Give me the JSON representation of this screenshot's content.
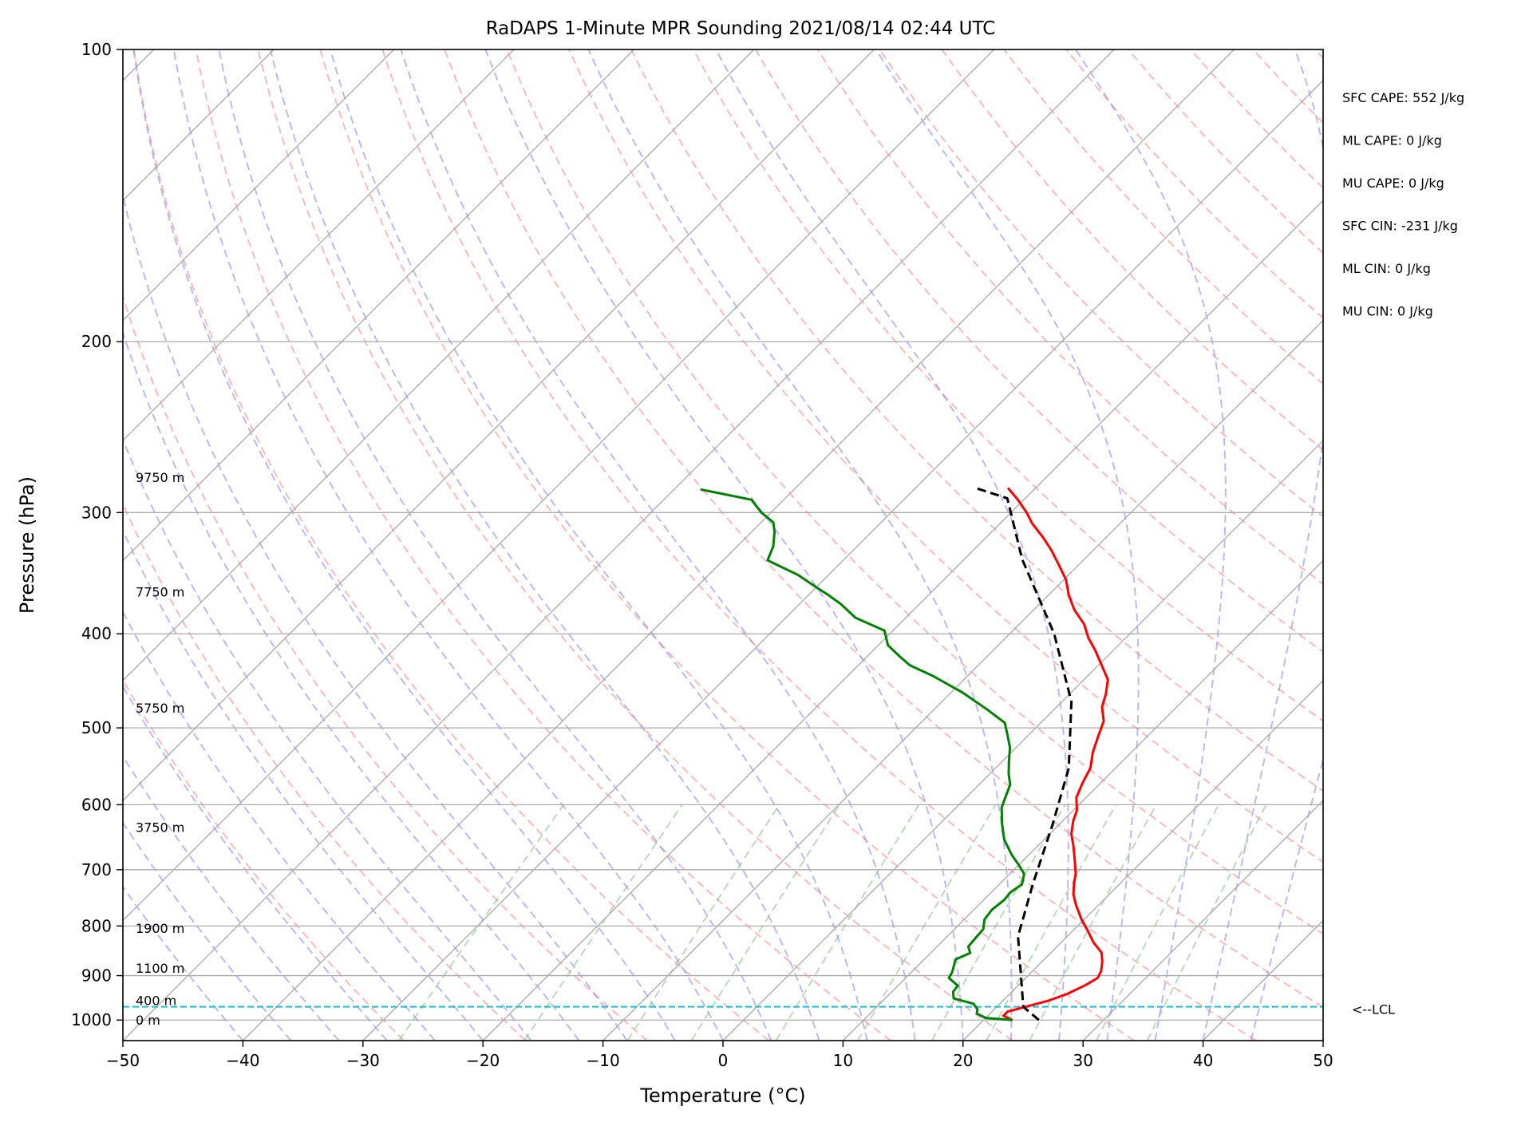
{
  "chart_data": {
    "type": "line",
    "title": "RaDAPS 1-Minute MPR Sounding 2021/08/14 02:44 UTC",
    "xlabel": "Temperature (°C)",
    "ylabel": "Pressure (hPa)",
    "xlim": [
      -50,
      50
    ],
    "ylim": [
      1050,
      100
    ],
    "y_scale": "log",
    "x_ticks": [
      -50,
      -40,
      -30,
      -20,
      -10,
      0,
      10,
      20,
      30,
      40,
      50
    ],
    "x_tick_labels": [
      "−50",
      "−40",
      "−30",
      "−20",
      "−10",
      "0",
      "10",
      "20",
      "30",
      "40",
      "50"
    ],
    "y_ticks": [
      100,
      200,
      300,
      400,
      500,
      600,
      700,
      800,
      900,
      1000
    ],
    "y_tick_labels": [
      "100",
      "200",
      "300",
      "400",
      "500",
      "600",
      "700",
      "800",
      "900",
      "1000"
    ],
    "grid": true,
    "skew_t": true,
    "series": [
      {
        "role": "temperature",
        "color": "#ff0000",
        "points": [
          [
            22.4,
            1000
          ],
          [
            21.3,
            990
          ],
          [
            21.3,
            980
          ],
          [
            22.5,
            968
          ],
          [
            23.8,
            955
          ],
          [
            24.8,
            940
          ],
          [
            25.6,
            920
          ],
          [
            26.0,
            905
          ],
          [
            25.7,
            890
          ],
          [
            25.0,
            870
          ],
          [
            24.2,
            852
          ],
          [
            22.7,
            832
          ],
          [
            21.3,
            810
          ],
          [
            19.8,
            788
          ],
          [
            18.1,
            761
          ],
          [
            17.0,
            742
          ],
          [
            16.1,
            722
          ],
          [
            15.5,
            707
          ],
          [
            14.2,
            683
          ],
          [
            13.0,
            662
          ],
          [
            11.8,
            643
          ],
          [
            10.9,
            624
          ],
          [
            10.3,
            608
          ],
          [
            9.2,
            590
          ],
          [
            8.5,
            570
          ],
          [
            7.9,
            550
          ],
          [
            6.8,
            530
          ],
          [
            5.9,
            510
          ],
          [
            5.1,
            492
          ],
          [
            3.8,
            476
          ],
          [
            3.0,
            461
          ],
          [
            2.0,
            446
          ],
          [
            0.4,
            432
          ],
          [
            -1.5,
            416
          ],
          [
            -3.1,
            404
          ],
          [
            -4.6,
            391
          ],
          [
            -6.6,
            378
          ],
          [
            -8.3,
            365
          ],
          [
            -9.8,
            352
          ],
          [
            -11.6,
            340
          ],
          [
            -13.5,
            328
          ],
          [
            -15.3,
            318
          ],
          [
            -17.3,
            308
          ],
          [
            -18.7,
            300
          ],
          [
            -20.5,
            291
          ],
          [
            -22.3,
            283
          ]
        ]
      },
      {
        "role": "dewpoint",
        "color": "#008000",
        "points": [
          [
            22.4,
            1000
          ],
          [
            20.0,
            995
          ],
          [
            18.9,
            985
          ],
          [
            18.6,
            975
          ],
          [
            17.8,
            962
          ],
          [
            15.7,
            950
          ],
          [
            15.1,
            935
          ],
          [
            15.0,
            922
          ],
          [
            13.6,
            905
          ],
          [
            13.4,
            893
          ],
          [
            13.0,
            879
          ],
          [
            12.6,
            866
          ],
          [
            13.3,
            853
          ],
          [
            12.6,
            840
          ],
          [
            12.5,
            824
          ],
          [
            12.4,
            806
          ],
          [
            11.7,
            788
          ],
          [
            11.5,
            770
          ],
          [
            11.7,
            752
          ],
          [
            11.6,
            738
          ],
          [
            11.9,
            725
          ],
          [
            11.2,
            707
          ],
          [
            10.0,
            692
          ],
          [
            8.6,
            676
          ],
          [
            6.7,
            652
          ],
          [
            5.2,
            628
          ],
          [
            3.8,
            604
          ],
          [
            3.2,
            588
          ],
          [
            2.6,
            572
          ],
          [
            1.6,
            558
          ],
          [
            0.6,
            542
          ],
          [
            -0.5,
            524
          ],
          [
            -1.8,
            508
          ],
          [
            -3.0,
            494
          ],
          [
            -5.7,
            478
          ],
          [
            -9.0,
            460
          ],
          [
            -12.9,
            442
          ],
          [
            -15.7,
            431
          ],
          [
            -17.3,
            422
          ],
          [
            -19.2,
            411
          ],
          [
            -20.7,
            397
          ],
          [
            -24.2,
            385
          ],
          [
            -26.5,
            373
          ],
          [
            -28.3,
            365
          ],
          [
            -29.8,
            359
          ],
          [
            -32.5,
            348
          ],
          [
            -36.3,
            336
          ],
          [
            -37.0,
            325
          ],
          [
            -38.1,
            314
          ],
          [
            -39.0,
            307
          ],
          [
            -40.8,
            300
          ],
          [
            -42.7,
            291
          ],
          [
            -47.8,
            284
          ]
        ]
      },
      {
        "role": "parcel",
        "color": "#000000",
        "style": "dashed",
        "points": [
          [
            24.6,
            1000
          ],
          [
            22.2,
            969
          ],
          [
            15.9,
            820
          ],
          [
            12.8,
            725
          ],
          [
            9.5,
            630
          ],
          [
            6.1,
            550
          ],
          [
            0.8,
            470
          ],
          [
            -6.3,
            400
          ],
          [
            -15.2,
            335
          ],
          [
            -21.5,
            290
          ],
          [
            -25.0,
            283
          ]
        ]
      }
    ],
    "lcl": {
      "pressure": 969,
      "label": "<--LCL",
      "color": "#17becf"
    },
    "height_labels": [
      {
        "text": "0 m",
        "pressure": 1000
      },
      {
        "text": "400 m",
        "pressure": 954
      },
      {
        "text": "1100 m",
        "pressure": 884
      },
      {
        "text": "1900 m",
        "pressure": 804
      },
      {
        "text": "3750 m",
        "pressure": 633
      },
      {
        "text": "5750 m",
        "pressure": 477
      },
      {
        "text": "7750 m",
        "pressure": 362
      },
      {
        "text": "9750 m",
        "pressure": 276
      }
    ],
    "annotations": [
      "SFC CAPE: 552 J/kg",
      "ML CAPE: 0 J/kg",
      "MU CAPE: 0 J/kg",
      "SFC CIN: -231 J/kg",
      "ML CIN: 0 J/kg",
      "MU CIN: 0 J/kg"
    ],
    "colors": {
      "isotherm": "#aaaaaa",
      "dry_adiabat": "#ff7f7f",
      "moist_adiabat": "#7f7fff",
      "mixing_ratio": "#7fbf7f"
    }
  }
}
